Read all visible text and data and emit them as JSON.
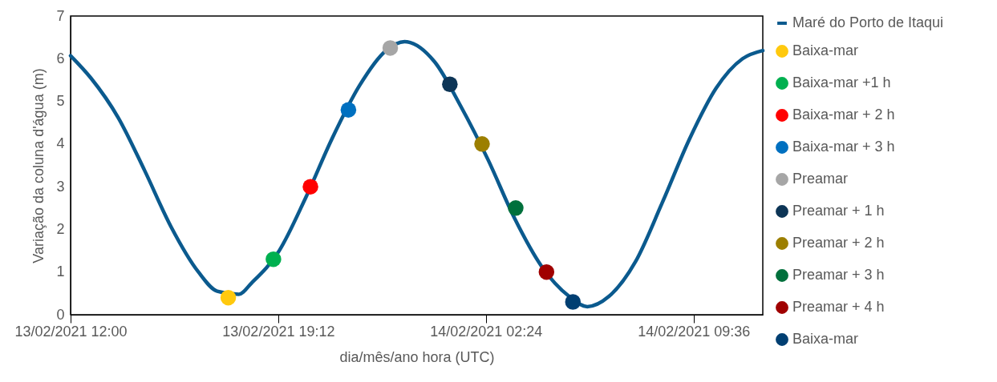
{
  "chart_data": {
    "type": "line",
    "xlabel": "dia/mês/ano hora (UTC)",
    "ylabel": "Variação da coluna d'água (m)",
    "xlim": [
      "2021-02-13T12:00",
      "2021-02-14T12:00"
    ],
    "ylim": [
      0,
      7
    ],
    "yticks": [
      0,
      1,
      2,
      3,
      4,
      5,
      6,
      7
    ],
    "xticks": [
      {
        "value": "2021-02-13T12:00",
        "label": "13/02/2021 12:00"
      },
      {
        "value": "2021-02-13T19:12",
        "label": "13/02/2021 19:12"
      },
      {
        "value": "2021-02-14T02:24",
        "label": "14/02/2021 02:24"
      },
      {
        "value": "2021-02-14T09:36",
        "label": "14/02/2021 09:36"
      }
    ],
    "grid": false,
    "legend": "right",
    "line_style": "solid",
    "series": [
      {
        "name": "Maré do Porto de Itaqui",
        "color": "#0b5a8e",
        "x": [
          "2021-02-13T12:00",
          "2021-02-13T12:42",
          "2021-02-13T13:39",
          "2021-02-13T14:34",
          "2021-02-13T15:29",
          "2021-02-13T16:26",
          "2021-02-13T17:05",
          "2021-02-13T17:50",
          "2021-02-13T18:17",
          "2021-02-13T19:14",
          "2021-02-13T20:09",
          "2021-02-13T21:04",
          "2021-02-13T22:01",
          "2021-02-13T22:56",
          "2021-02-13T23:35",
          "2021-02-14T00:37",
          "2021-02-14T01:32",
          "2021-02-14T02:29",
          "2021-02-14T03:24",
          "2021-02-14T04:20",
          "2021-02-14T05:17",
          "2021-02-14T05:55",
          "2021-02-14T06:40",
          "2021-02-14T07:35",
          "2021-02-14T08:31",
          "2021-02-14T09:28",
          "2021-02-14T10:23",
          "2021-02-14T11:18",
          "2021-02-14T12:00"
        ],
        "values": [
          6.07,
          5.55,
          4.62,
          3.38,
          2.06,
          1.0,
          0.55,
          0.48,
          0.75,
          1.5,
          2.74,
          4.13,
          5.37,
          6.19,
          6.4,
          5.93,
          4.88,
          3.62,
          2.25,
          1.13,
          0.43,
          0.19,
          0.43,
          1.24,
          2.63,
          4.13,
          5.31,
          6.0,
          6.19
        ]
      },
      {
        "type": "scatter",
        "name": "Baixa-mar",
        "color": "#ffc90e",
        "x": [
          "2021-02-13T17:28"
        ],
        "values": [
          0.4
        ]
      },
      {
        "type": "scatter",
        "name": "Baixa-mar +1 h",
        "color": "#00b050",
        "x": [
          "2021-02-13T19:02"
        ],
        "values": [
          1.3
        ]
      },
      {
        "type": "scatter",
        "name": "Baixa-mar + 2 h",
        "color": "#ff0000",
        "x": [
          "2021-02-13T20:19"
        ],
        "values": [
          3.0
        ]
      },
      {
        "type": "scatter",
        "name": "Baixa-mar + 3 h",
        "color": "#0070c0",
        "x": [
          "2021-02-13T21:38"
        ],
        "values": [
          4.8
        ]
      },
      {
        "type": "scatter",
        "name": "Preamar",
        "color": "#a6a6a6",
        "x": [
          "2021-02-13T23:05"
        ],
        "values": [
          6.25
        ]
      },
      {
        "type": "scatter",
        "name": "Preamar + 1 h",
        "color": "#0d3556",
        "x": [
          "2021-02-14T01:09"
        ],
        "values": [
          5.4
        ]
      },
      {
        "type": "scatter",
        "name": "Preamar + 2 h",
        "color": "#9c7f00",
        "x": [
          "2021-02-14T02:16"
        ],
        "values": [
          4.0
        ]
      },
      {
        "type": "scatter",
        "name": "Preamar + 3 h",
        "color": "#00703c",
        "x": [
          "2021-02-14T03:26"
        ],
        "values": [
          2.5
        ]
      },
      {
        "type": "scatter",
        "name": "Preamar + 4 h",
        "color": "#a00000",
        "x": [
          "2021-02-14T04:30"
        ],
        "values": [
          1.0
        ]
      },
      {
        "type": "scatter",
        "name": "Baixa-mar",
        "color": "#003f72",
        "x": [
          "2021-02-14T05:25"
        ],
        "values": [
          0.3
        ]
      }
    ]
  }
}
